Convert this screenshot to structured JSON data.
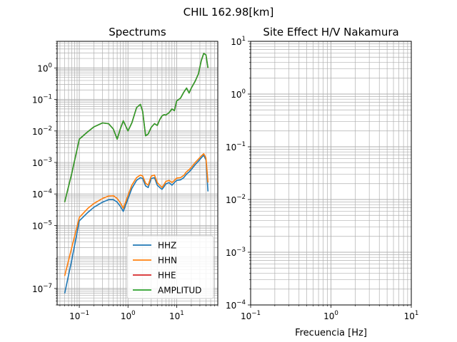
{
  "figure": {
    "suptitle": "CHIL 162.98[km]"
  },
  "chart_data": [
    {
      "type": "line",
      "title": "Spectrums",
      "xscale": "log",
      "yscale": "log",
      "xlim": [
        0.035,
        70
      ],
      "ylim": [
        3e-08,
        7
      ],
      "grid": true,
      "legend_position": "lower-right",
      "x_ticks": [
        {
          "value": 0.1,
          "label": "10^-1"
        },
        {
          "value": 1,
          "label": "10^0"
        },
        {
          "value": 10,
          "label": "10^1"
        }
      ],
      "y_ticks": [
        {
          "value": 1e-07,
          "label": "10^-7"
        },
        {
          "value": 1e-05,
          "label": "10^-5"
        },
        {
          "value": 0.0001,
          "label": "10^-4"
        },
        {
          "value": 0.001,
          "label": "10^-3"
        },
        {
          "value": 0.01,
          "label": "10^-2"
        },
        {
          "value": 0.1,
          "label": "10^-1"
        },
        {
          "value": 1,
          "label": "10^0"
        }
      ],
      "series": [
        {
          "name": "HHZ",
          "color": "#1f77b4",
          "x": [
            0.05,
            0.07,
            0.1,
            0.15,
            0.2,
            0.3,
            0.4,
            0.5,
            0.6,
            0.7,
            0.8,
            1.0,
            1.2,
            1.5,
            1.8,
            2.0,
            2.3,
            2.6,
            3.0,
            3.5,
            4.0,
            4.5,
            5.0,
            5.5,
            6.0,
            7.0,
            8.0,
            9.0,
            10,
            12,
            14,
            16,
            18,
            20,
            24,
            28,
            32,
            36,
            40,
            44
          ],
          "y": [
            7e-08,
            8e-07,
            1.4e-05,
            2.6e-05,
            3.8e-05,
            5.5e-05,
            6.6e-05,
            6.6e-05,
            5.5e-05,
            4e-05,
            2.8e-05,
            7e-05,
            0.00015,
            0.00027,
            0.00033,
            0.00031,
            0.00018,
            0.00016,
            0.00031,
            0.00033,
            0.00019,
            0.00016,
            0.00014,
            0.00017,
            0.00021,
            0.00023,
            0.00019,
            0.00023,
            0.00027,
            0.00028,
            0.00033,
            0.00043,
            0.0005,
            0.0006,
            0.00085,
            0.0011,
            0.0014,
            0.0017,
            0.0012,
            0.00012
          ]
        },
        {
          "name": "HHN",
          "color": "#ff7f0e",
          "x": [
            0.05,
            0.07,
            0.1,
            0.15,
            0.2,
            0.3,
            0.4,
            0.5,
            0.6,
            0.7,
            0.8,
            1.0,
            1.2,
            1.5,
            1.8,
            2.0,
            2.3,
            2.6,
            3.0,
            3.5,
            4.0,
            4.5,
            5.0,
            5.5,
            6.0,
            7.0,
            8.0,
            9.0,
            10,
            12,
            14,
            16,
            18,
            20,
            24,
            28,
            32,
            36,
            40,
            44
          ],
          "y": [
            2.5e-07,
            2e-06,
            1.8e-05,
            3.5e-05,
            5e-05,
            7.2e-05,
            8.6e-05,
            8.8e-05,
            7.2e-05,
            5.2e-05,
            3.5e-05,
            9e-05,
            0.00019,
            0.00033,
            0.0004,
            0.00037,
            0.00022,
            0.00019,
            0.00037,
            0.0004,
            0.00023,
            0.00019,
            0.00016,
            0.0002,
            0.00025,
            0.00027,
            0.00023,
            0.00027,
            0.00032,
            0.00033,
            0.00039,
            0.00051,
            0.00059,
            0.0007,
            0.00099,
            0.00128,
            0.0016,
            0.0019,
            0.0014,
            0.00023
          ]
        },
        {
          "name": "HHE",
          "color": "#d62728",
          "x": [
            0.05,
            0.07,
            0.1,
            0.15,
            0.2,
            0.3,
            0.4,
            0.5,
            0.6,
            0.7,
            0.8,
            1.0,
            1.2,
            1.5,
            1.8,
            2.0,
            2.3,
            2.6,
            3.0,
            3.5,
            4.0,
            4.5,
            5.0,
            5.5,
            6.0,
            7.0,
            8.0,
            9.0,
            10,
            12,
            14,
            16,
            18,
            20,
            24,
            28,
            32,
            36,
            40,
            44
          ],
          "y": [
            5.5e-05,
            0.00045,
            0.0055,
            0.0095,
            0.0135,
            0.018,
            0.017,
            0.0115,
            0.0055,
            0.012,
            0.021,
            0.01,
            0.018,
            0.055,
            0.07,
            0.042,
            0.007,
            0.008,
            0.013,
            0.017,
            0.015,
            0.023,
            0.03,
            0.033,
            0.032,
            0.038,
            0.05,
            0.044,
            0.09,
            0.11,
            0.17,
            0.23,
            0.16,
            0.23,
            0.38,
            0.65,
            1.7,
            2.9,
            2.6,
            1.0
          ]
        },
        {
          "name": "AMPLITUD",
          "color": "#2ca02c",
          "x": [
            0.05,
            0.07,
            0.1,
            0.15,
            0.2,
            0.3,
            0.4,
            0.5,
            0.6,
            0.7,
            0.8,
            1.0,
            1.2,
            1.5,
            1.8,
            2.0,
            2.3,
            2.6,
            3.0,
            3.5,
            4.0,
            4.5,
            5.0,
            5.5,
            6.0,
            7.0,
            8.0,
            9.0,
            10,
            12,
            14,
            16,
            18,
            20,
            24,
            28,
            32,
            36,
            40,
            44
          ],
          "y": [
            5.5e-05,
            0.00045,
            0.0055,
            0.0095,
            0.0135,
            0.018,
            0.017,
            0.0115,
            0.0055,
            0.012,
            0.021,
            0.01,
            0.018,
            0.055,
            0.07,
            0.042,
            0.007,
            0.008,
            0.013,
            0.017,
            0.015,
            0.023,
            0.03,
            0.033,
            0.032,
            0.038,
            0.05,
            0.044,
            0.09,
            0.11,
            0.17,
            0.23,
            0.16,
            0.23,
            0.38,
            0.65,
            1.7,
            2.9,
            2.6,
            1.0
          ]
        }
      ]
    },
    {
      "type": "line",
      "title": "Site Effect H/V Nakamura",
      "xlabel": "Frecuencia [Hz]",
      "xscale": "log",
      "yscale": "log",
      "xlim": [
        0.1,
        10
      ],
      "ylim": [
        0.0001,
        10
      ],
      "grid": true,
      "x_ticks": [
        {
          "value": 0.1,
          "label": "10^-1"
        },
        {
          "value": 1,
          "label": "10^0"
        },
        {
          "value": 10,
          "label": "10^1"
        }
      ],
      "y_ticks": [
        {
          "value": 0.0001,
          "label": "10^-4"
        },
        {
          "value": 0.001,
          "label": "10^-3"
        },
        {
          "value": 0.01,
          "label": "10^-2"
        },
        {
          "value": 0.1,
          "label": "10^-1"
        },
        {
          "value": 1,
          "label": "10^0"
        },
        {
          "value": 10,
          "label": "10^1"
        }
      ],
      "series": []
    }
  ]
}
